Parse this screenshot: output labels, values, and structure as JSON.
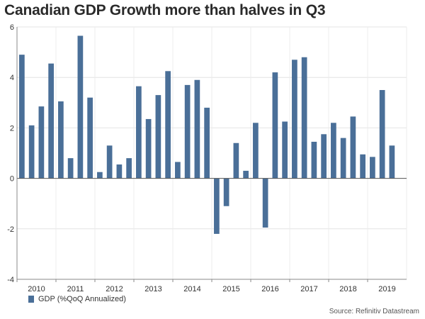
{
  "chart_data": {
    "type": "bar",
    "title": "Canadian GDP Growth more than halves in Q3",
    "color": "#4a6f98",
    "ylim": [
      -4,
      6
    ],
    "yticks": [
      -4,
      -2,
      0,
      2,
      4,
      6
    ],
    "grid": true,
    "year_labels": [
      "2010",
      "2011",
      "2012",
      "2013",
      "2014",
      "2015",
      "2016",
      "2017",
      "2018",
      "2019"
    ],
    "series": [
      {
        "name": "GDP (%QoQ Annualized)",
        "values": [
          4.9,
          2.1,
          2.85,
          4.55,
          3.05,
          0.8,
          5.65,
          3.2,
          0.25,
          1.3,
          0.55,
          0.8,
          3.65,
          2.35,
          3.3,
          4.25,
          0.65,
          3.7,
          3.9,
          2.8,
          -2.2,
          -1.1,
          1.4,
          0.3,
          2.2,
          -1.95,
          4.2,
          2.25,
          4.7,
          4.8,
          1.45,
          1.75,
          2.2,
          1.6,
          2.45,
          0.95,
          0.85,
          3.5,
          1.3
        ]
      }
    ],
    "legend": {
      "label": "GDP (%QoQ Annualized)",
      "position": "bottom-left"
    },
    "source": "Source: Refinitiv Datastream"
  }
}
